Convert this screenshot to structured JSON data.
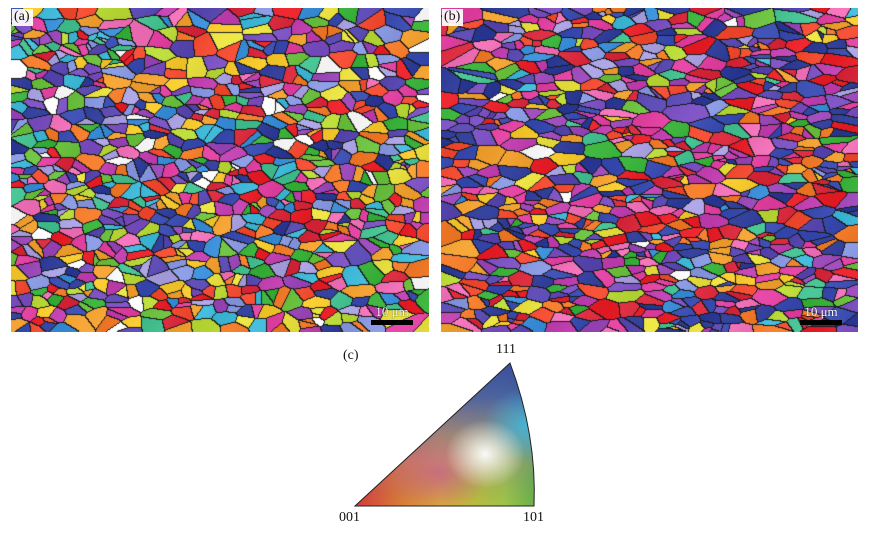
{
  "panels": [
    {
      "label": "(a)",
      "scale_label": "10 μm"
    },
    {
      "label": "(b)",
      "scale_label": "10 μm"
    }
  ],
  "key": {
    "label": "(c)",
    "corner_top": "111",
    "corner_left": "001",
    "corner_right": "101"
  },
  "colors": {
    "grain_boundary": "#1a1a1a",
    "orientation_001": "#e8202a",
    "orientation_101": "#38b03a",
    "orientation_111": "#2e3c98",
    "background": "#ffffff"
  }
}
